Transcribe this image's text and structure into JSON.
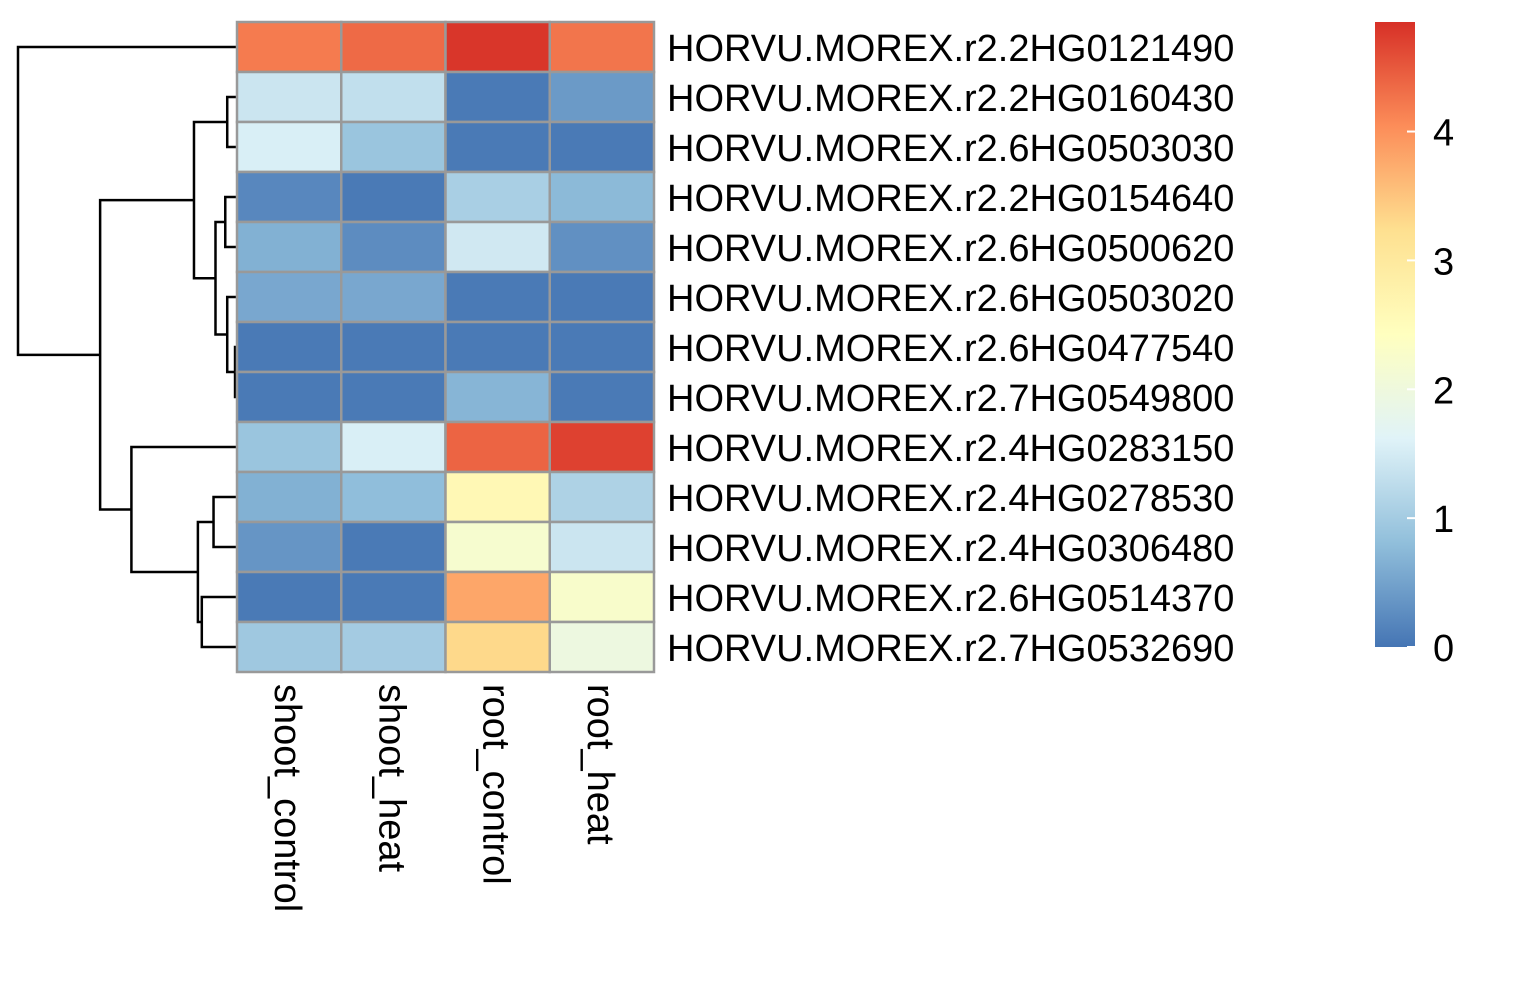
{
  "chart_data": {
    "type": "heatmap",
    "columns": [
      "shoot_control",
      "shoot_heat",
      "root_control",
      "root_heat"
    ],
    "rows": [
      "HORVU.MOREX.r2.2HG0121490",
      "HORVU.MOREX.r2.2HG0160430",
      "HORVU.MOREX.r2.6HG0503030",
      "HORVU.MOREX.r2.2HG0154640",
      "HORVU.MOREX.r2.6HG0500620",
      "HORVU.MOREX.r2.6HG0503020",
      "HORVU.MOREX.r2.6HG0477540",
      "HORVU.MOREX.r2.7HG0549800",
      "HORVU.MOREX.r2.4HG0283150",
      "HORVU.MOREX.r2.4HG0278530",
      "HORVU.MOREX.r2.4HG0306480",
      "HORVU.MOREX.r2.6HG0514370",
      "HORVU.MOREX.r2.7HG0532690"
    ],
    "values": [
      [
        4.2,
        4.35,
        4.8,
        4.25
      ],
      [
        1.4,
        1.3,
        0.05,
        0.4
      ],
      [
        1.55,
        0.9,
        0.05,
        0.05
      ],
      [
        0.2,
        0.05,
        1.05,
        0.75
      ],
      [
        0.65,
        0.25,
        1.45,
        0.3
      ],
      [
        0.55,
        0.55,
        0.05,
        0.05
      ],
      [
        0.05,
        0.05,
        0.05,
        0.05
      ],
      [
        0.05,
        0.05,
        0.7,
        0.05
      ],
      [
        0.9,
        1.55,
        4.4,
        4.7
      ],
      [
        0.65,
        0.8,
        2.6,
        1.1
      ],
      [
        0.35,
        0.05,
        2.2,
        1.4
      ],
      [
        0.05,
        0.05,
        3.8,
        2.25
      ],
      [
        0.95,
        1.0,
        3.3,
        1.95
      ]
    ],
    "color_scale": {
      "min": 0,
      "max": 4.85,
      "ticks": [
        "0",
        "1",
        "2",
        "3",
        "4"
      ],
      "colors": [
        "#4575b4",
        "#91bfdb",
        "#e0f3f8",
        "#ffffbf",
        "#fee090",
        "#fc8d59",
        "#d73027"
      ]
    },
    "row_dendrogram": {
      "merges": [
        [
          [
            7
          ],
          [
            8
          ],
          0.05
        ],
        [
          [
            6
          ],
          [
            -1
          ],
          0.25
        ],
        [
          [
            4
          ],
          [
            5
          ],
          0.3
        ],
        [
          [
            -3
          ],
          [
            -2
          ],
          0.55
        ],
        [
          [
            2
          ],
          [
            3
          ],
          0.25
        ],
        [
          [
            -5
          ],
          [
            -4
          ],
          1.1
        ],
        [
          [
            12
          ],
          [
            13
          ],
          0.9
        ],
        [
          [
            10
          ],
          [
            11
          ],
          0.6
        ],
        [
          [
            -8
          ],
          [
            -7
          ],
          1.0
        ],
        [
          [
            9
          ],
          [
            -9
          ],
          2.7
        ],
        [
          [
            -6
          ],
          [
            -10
          ],
          3.5
        ],
        [
          [
            1
          ],
          [
            -11
          ],
          5.6
        ]
      ]
    },
    "cell_border_color": "#999999"
  }
}
